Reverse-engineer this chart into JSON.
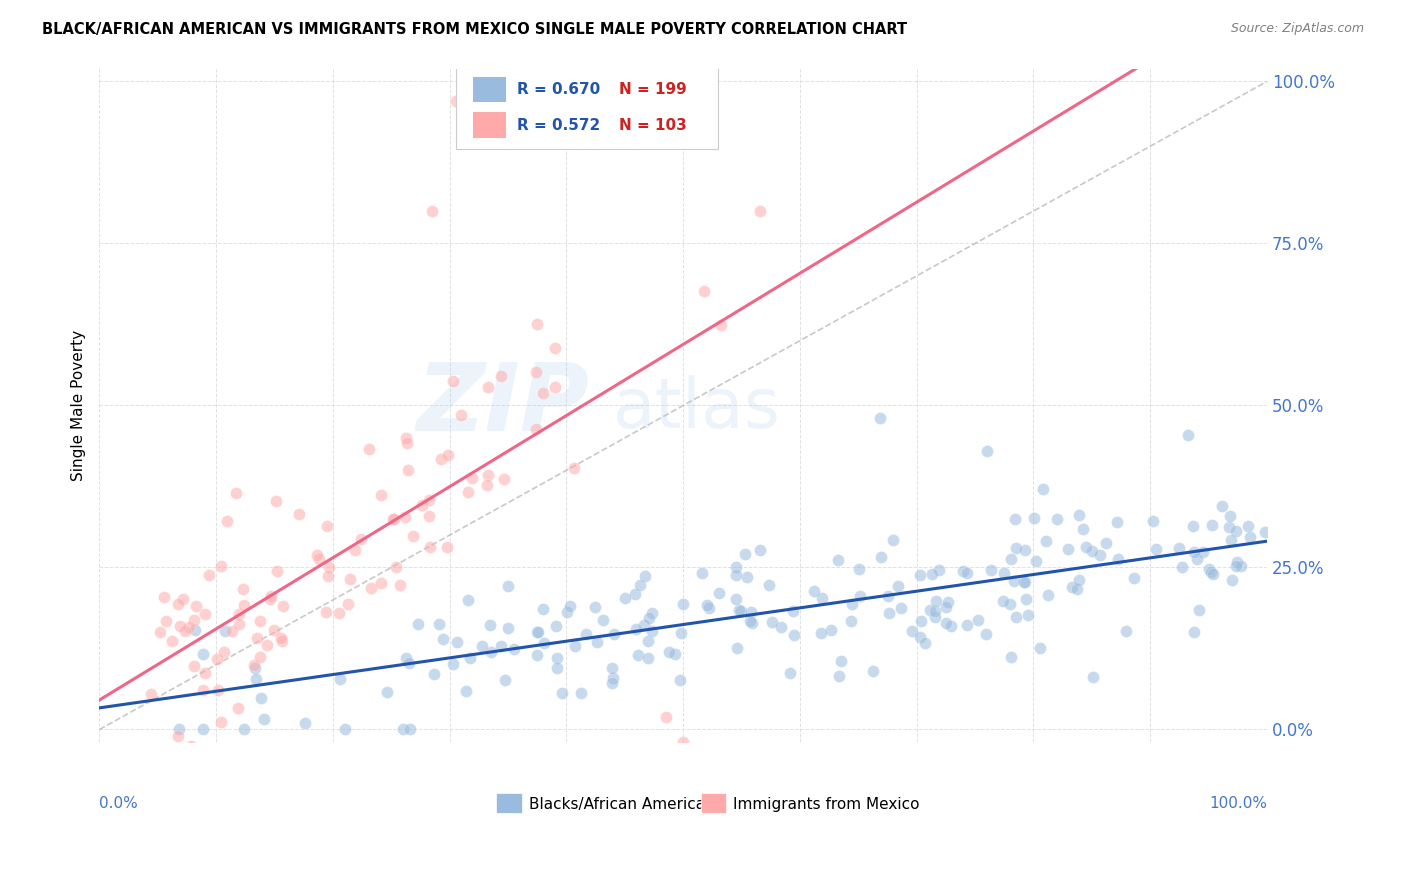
{
  "title": "BLACK/AFRICAN AMERICAN VS IMMIGRANTS FROM MEXICO SINGLE MALE POVERTY CORRELATION CHART",
  "source": "Source: ZipAtlas.com",
  "ylabel": "Single Male Poverty",
  "blue_R": "0.670",
  "blue_N": "199",
  "pink_R": "0.572",
  "pink_N": "103",
  "blue_scatter_color": "#99BBDD",
  "pink_scatter_color": "#FFAAAA",
  "blue_line_color": "#2255AA",
  "pink_line_color": "#EE6688",
  "diag_line_color": "#BBBBBB",
  "ytick_labels": [
    "0.0%",
    "25.0%",
    "50.0%",
    "75.0%",
    "100.0%"
  ],
  "ytick_values": [
    0.0,
    0.25,
    0.5,
    0.75,
    1.0
  ],
  "xtick_label_left": "0.0%",
  "xtick_label_right": "100.0%",
  "legend_blue_label": "Blacks/African Americans",
  "legend_pink_label": "Immigrants from Mexico",
  "axis_label_color": "#4477CC",
  "background_color": "#FFFFFF",
  "grid_color": "#DDDDDD",
  "watermark_text": "ZIPatlas",
  "watermark_color": "#AACCEE",
  "legend_R_color": "#2255AA",
  "legend_N_color": "#CC2222"
}
